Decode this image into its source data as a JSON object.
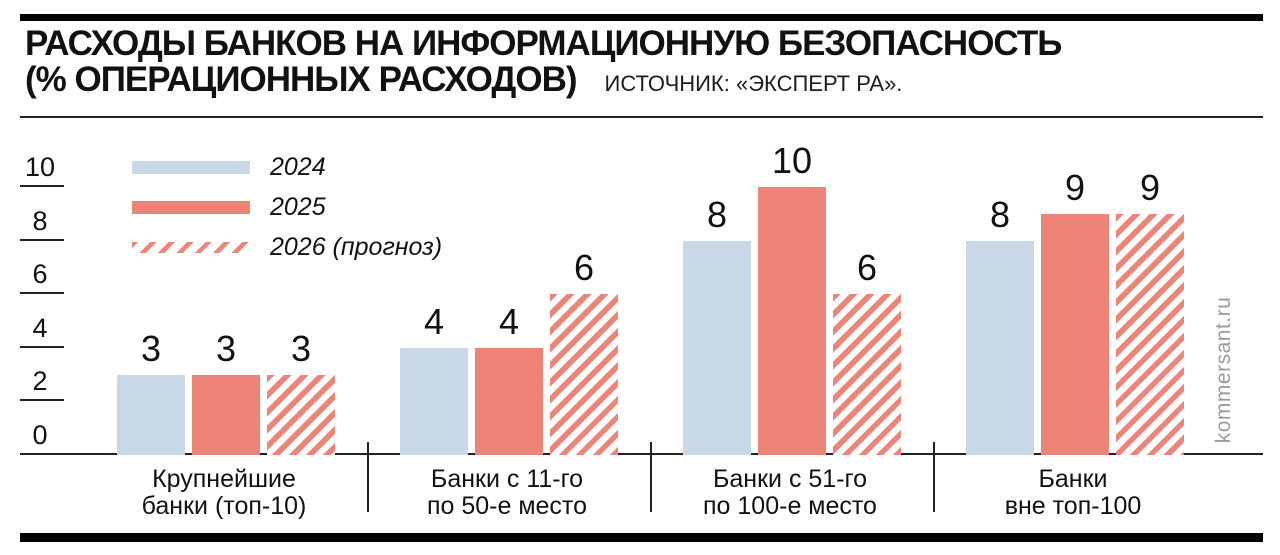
{
  "header": {
    "title_line1": "РАСХОДЫ БАНКОВ НА ИНФОРМАЦИОННУЮ БЕЗОПАСНОСТЬ",
    "title_line2": "(% ОПЕРАЦИОННЫХ РАСХОДОВ)",
    "source": "ИСТОЧНИК: «ЭКСПЕРТ РА»."
  },
  "watermark": "kommersant.ru",
  "colors": {
    "bar_2024": "#c8d8e6",
    "bar_2025": "#ee8378",
    "bar_2026_hatch": "#ee8378",
    "text": "#111111",
    "rules": "#000000",
    "watermark": "#9b9b9b"
  },
  "chart_data": {
    "type": "bar",
    "title": "РАСХОДЫ БАНКОВ НА ИНФОРМАЦИОННУЮ БЕЗОПАСНОСТЬ (% ОПЕРАЦИОННЫХ РАСХОДОВ)",
    "source": "ИСТОЧНИК: «ЭКСПЕРТ РА».",
    "categories": [
      [
        "Крупнейшие",
        "банки (топ-10)"
      ],
      [
        "Банки с 11-го",
        "по 50-е место"
      ],
      [
        "Банки с 51-го",
        "по 100-е место"
      ],
      [
        "Банки",
        "вне топ-100"
      ]
    ],
    "series": [
      {
        "name": "2024",
        "style": "solid-blue",
        "values": [
          3,
          4,
          8,
          8
        ]
      },
      {
        "name": "2025",
        "style": "solid-salmon",
        "values": [
          3,
          4,
          10,
          9
        ]
      },
      {
        "name": "2026 (прогноз)",
        "style": "hatch-salmon",
        "values": [
          3,
          6,
          6,
          9
        ]
      }
    ],
    "yticks": [
      0,
      2,
      4,
      6,
      8,
      10
    ],
    "ylim": [
      0,
      10
    ],
    "xlabel": "",
    "ylabel": "",
    "grid": "off",
    "legend_position": "top-left",
    "bar_value_labels": true
  }
}
